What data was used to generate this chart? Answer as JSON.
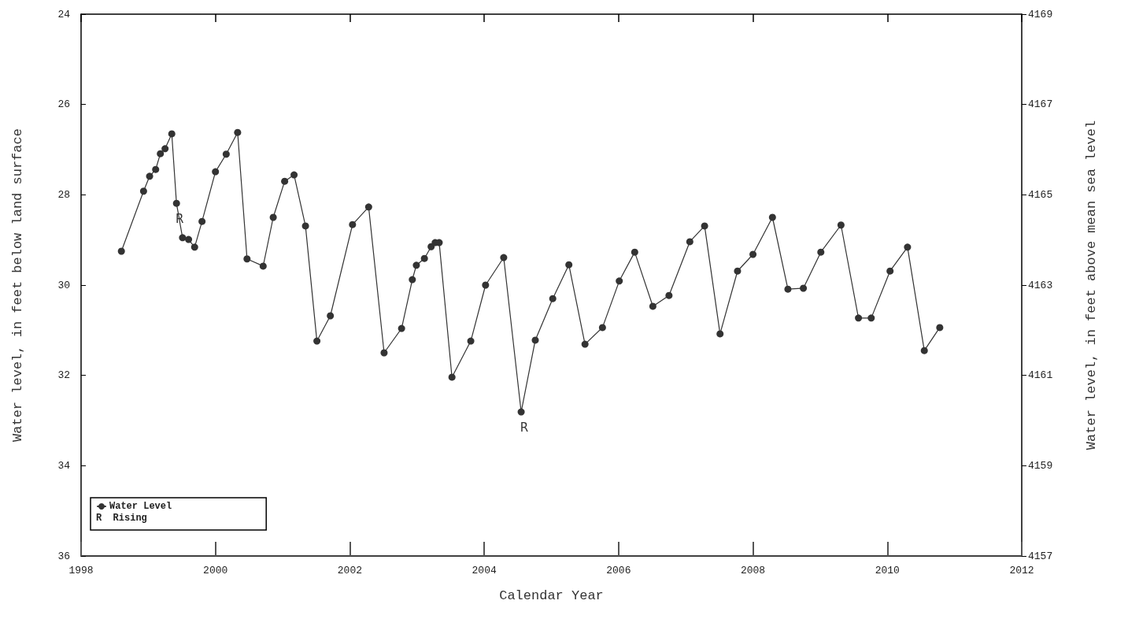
{
  "chart_data": {
    "type": "line",
    "xlabel": "Calendar Year",
    "ylabel": "Water level, in feet below land surface",
    "y2label": "Water level, in feet above mean sea level",
    "xlim": [
      1998,
      2012
    ],
    "xticks": [
      1998,
      2000,
      2002,
      2004,
      2006,
      2008,
      2010,
      2012
    ],
    "ylim": [
      36,
      24
    ],
    "yticks": [
      24,
      26,
      28,
      30,
      32,
      34,
      36
    ],
    "y2lim": [
      4157,
      4169
    ],
    "y2ticks": [
      4157,
      4159,
      4161,
      4163,
      4165,
      4167,
      4169
    ],
    "grid": false,
    "legend": "bottom left",
    "marker": "circle",
    "line_style": "solid",
    "series": [
      {
        "name": "Water Level",
        "color": "#333333",
        "x": [
          1998.6,
          1998.93,
          1999.02,
          1999.11,
          1999.18,
          1999.25,
          1999.35,
          1999.42,
          1999.51,
          1999.6,
          1999.69,
          1999.8,
          2000.0,
          2000.16,
          2000.33,
          2000.47,
          2000.71,
          2000.86,
          2001.03,
          2001.17,
          2001.34,
          2001.51,
          2001.71,
          2002.04,
          2002.28,
          2002.51,
          2002.77,
          2002.93,
          2002.99,
          2003.11,
          2003.21,
          2003.27,
          2003.33,
          2003.52,
          2003.8,
          2004.02,
          2004.29,
          2004.55,
          2004.76,
          2005.02,
          2005.26,
          2005.5,
          2005.76,
          2006.01,
          2006.24,
          2006.51,
          2006.75,
          2007.06,
          2007.28,
          2007.51,
          2007.77,
          2008.0,
          2008.29,
          2008.52,
          2008.75,
          2009.01,
          2009.31,
          2009.57,
          2009.76,
          2010.04,
          2010.3,
          2010.55,
          2010.78
        ],
        "values": [
          29.25,
          27.92,
          27.59,
          27.44,
          27.09,
          26.98,
          26.65,
          28.19,
          28.95,
          28.99,
          29.16,
          28.59,
          27.49,
          27.1,
          26.62,
          29.42,
          29.58,
          28.5,
          27.7,
          27.56,
          28.69,
          31.24,
          30.68,
          28.66,
          28.27,
          31.5,
          30.96,
          29.88,
          29.56,
          29.41,
          29.15,
          29.06,
          29.06,
          32.04,
          31.24,
          30.0,
          29.39,
          32.81,
          31.22,
          30.3,
          29.55,
          31.31,
          30.94,
          29.91,
          29.27,
          30.47,
          30.23,
          29.04,
          28.69,
          31.08,
          29.69,
          29.32,
          28.5,
          30.09,
          30.07,
          29.27,
          28.67,
          30.73,
          30.73,
          29.69,
          29.16,
          31.45,
          30.94
        ]
      }
    ],
    "annotations": [
      {
        "text": "R",
        "x": 1999.42,
        "y": 28.19
      },
      {
        "text": "R",
        "x": 2004.55,
        "y": 32.81
      },
      "R  Rising"
    ]
  }
}
